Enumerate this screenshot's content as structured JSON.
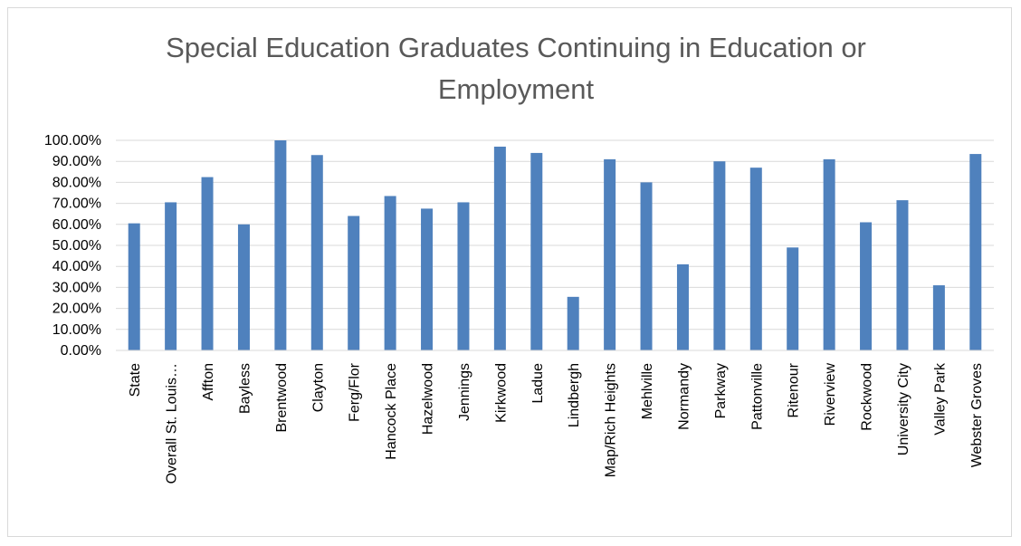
{
  "chart_data": {
    "type": "bar",
    "title": "Special Education Graduates Continuing in Education or Employment",
    "xlabel": "",
    "ylabel": "",
    "ylim": [
      0,
      100
    ],
    "yticks": [
      "0.00%",
      "10.00%",
      "20.00%",
      "30.00%",
      "40.00%",
      "50.00%",
      "60.00%",
      "70.00%",
      "80.00%",
      "90.00%",
      "100.00%"
    ],
    "grid": true,
    "legend": "none",
    "bar_color": "#4f81bd",
    "grid_color": "#d9d9d9",
    "categories": [
      "State",
      "Overall St. Louis…",
      "Affton",
      "Bayless",
      "Brentwood",
      "Clayton",
      "Ferg/Flor",
      "Hancock Place",
      "Hazelwood",
      "Jennings",
      "Kirkwood",
      "Ladue",
      "Lindbergh",
      "Map/Rich Heights",
      "Mehlville",
      "Normandy",
      "Parkway",
      "Pattonville",
      "Ritenour",
      "Riverview",
      "Rockwood",
      "University City",
      "Valley Park",
      "Webster Groves"
    ],
    "values": [
      60.5,
      70.5,
      82.5,
      60,
      100,
      93,
      64,
      73.5,
      67.5,
      70.5,
      97,
      94,
      25.5,
      91,
      80,
      41,
      90,
      87,
      49,
      91,
      61,
      71.5,
      31,
      93.5
    ]
  }
}
